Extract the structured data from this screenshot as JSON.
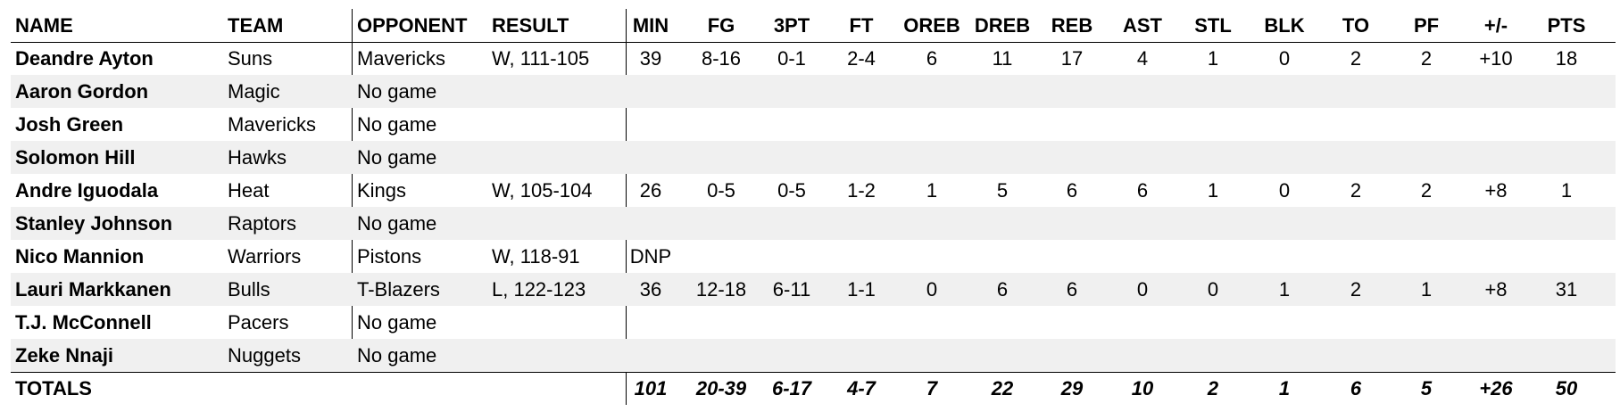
{
  "table": {
    "headers": [
      "NAME",
      "TEAM",
      "OPPONENT",
      "RESULT",
      "MIN",
      "FG",
      "3PT",
      "FT",
      "OREB",
      "DREB",
      "REB",
      "AST",
      "STL",
      "BLK",
      "TO",
      "PF",
      "+/-",
      "PTS"
    ],
    "rows": [
      [
        "Deandre Ayton",
        "Suns",
        "Mavericks",
        "W, 111-105",
        "39",
        "8-16",
        "0-1",
        "2-4",
        "6",
        "11",
        "17",
        "4",
        "1",
        "0",
        "2",
        "2",
        "+10",
        "18"
      ],
      [
        "Aaron Gordon",
        "Magic",
        "No game"
      ],
      [
        "Josh Green",
        "Mavericks",
        "No game"
      ],
      [
        "Solomon Hill",
        "Hawks",
        "No game"
      ],
      [
        "Andre Iguodala",
        "Heat",
        "Kings",
        "W, 105-104",
        "26",
        "0-5",
        "0-5",
        "1-2",
        "1",
        "5",
        "6",
        "6",
        "1",
        "0",
        "2",
        "2",
        "+8",
        "1"
      ],
      [
        "Stanley Johnson",
        "Raptors",
        "No game"
      ],
      [
        "Nico Mannion",
        "Warriors",
        "Pistons",
        "W, 118-91",
        "DNP"
      ],
      [
        "Lauri Markkanen",
        "Bulls",
        "T-Blazers",
        "L, 122-123",
        "36",
        "12-18",
        "6-11",
        "1-1",
        "0",
        "6",
        "6",
        "0",
        "0",
        "1",
        "2",
        "1",
        "+8",
        "31"
      ],
      [
        "T.J. McConnell",
        "Pacers",
        "No game"
      ],
      [
        "Zeke Nnaji",
        "Nuggets",
        "No game"
      ]
    ],
    "totals": {
      "label": "TOTALS",
      "values": [
        "101",
        "20-39",
        "6-17",
        "4-7",
        "7",
        "22",
        "29",
        "10",
        "2",
        "1",
        "6",
        "5",
        "+26",
        "50"
      ]
    }
  }
}
